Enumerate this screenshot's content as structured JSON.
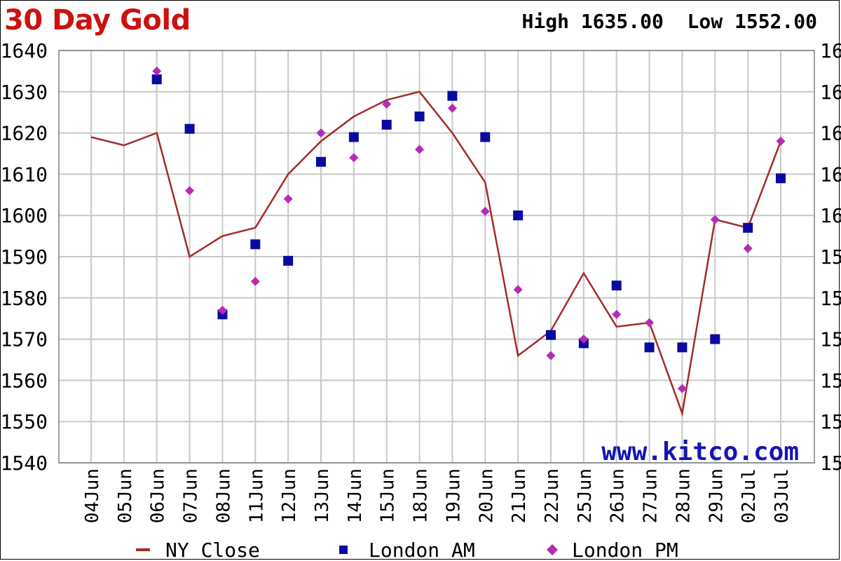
{
  "title": "30 Day Gold",
  "high_label": "High",
  "high_value": "1635.00",
  "low_label": "Low",
  "low_value": "1552.00",
  "watermark": "www.kitco.com",
  "colors": {
    "title": "#cc1111",
    "ny_close": "#a52a2a",
    "london_am": "#0a0aa0",
    "london_pm": "#b62ab6",
    "grid": "#c8c8c8",
    "watermark": "#1515b0"
  },
  "chart_data": {
    "type": "line",
    "title": "30 Day Gold",
    "categories": [
      "04Jun",
      "05Jun",
      "06Jun",
      "07Jun",
      "08Jun",
      "11Jun",
      "12Jun",
      "13Jun",
      "14Jun",
      "15Jun",
      "18Jun",
      "19Jun",
      "20Jun",
      "21Jun",
      "22Jun",
      "25Jun",
      "26Jun",
      "27Jun",
      "28Jun",
      "29Jun",
      "02Jul",
      "03Jul"
    ],
    "ylim": [
      1540,
      1640
    ],
    "yticks": [
      1540,
      1550,
      1560,
      1570,
      1580,
      1590,
      1600,
      1610,
      1620,
      1630,
      1640
    ],
    "right_tick_labels": [
      "15",
      "15",
      "15",
      "15",
      "15",
      "15",
      "16",
      "16",
      "16",
      "16",
      "16"
    ],
    "grid": true,
    "legend_position": "bottom",
    "series": [
      {
        "name": "NY Close",
        "style": "line",
        "values": [
          1619,
          1617,
          1620,
          1590,
          1595,
          1597,
          1610,
          1618,
          1624,
          1628,
          1630,
          1620,
          1608,
          1566,
          1572,
          1586,
          1573,
          1574,
          1552,
          1599,
          1597,
          1618
        ]
      },
      {
        "name": "London AM",
        "style": "square",
        "values": [
          null,
          null,
          1633,
          1621,
          1576,
          1593,
          1589,
          1613,
          1619,
          1622,
          1624,
          1629,
          1619,
          1600,
          1571,
          1569,
          1583,
          1568,
          1568,
          1570,
          1597,
          1609
        ]
      },
      {
        "name": "London PM",
        "style": "diamond",
        "values": [
          null,
          null,
          1635,
          1606,
          1577,
          1584,
          1604,
          1620,
          1614,
          1627,
          1616,
          1626,
          1601,
          1582,
          1566,
          1570,
          1576,
          1574,
          1558,
          1599,
          1592,
          1618
        ]
      }
    ]
  }
}
